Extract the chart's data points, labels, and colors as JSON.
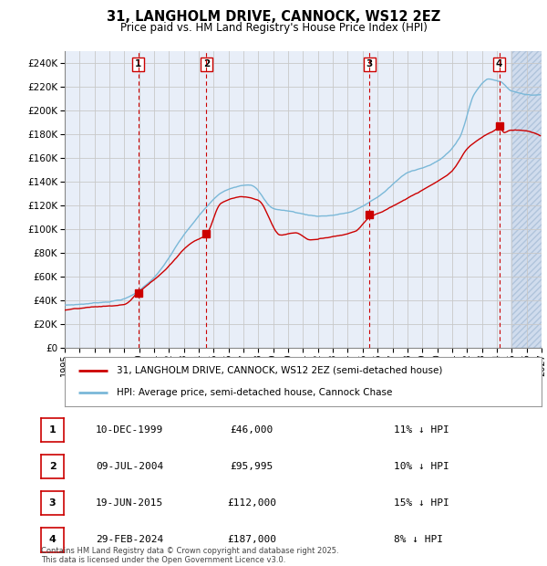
{
  "title1": "31, LANGHOLM DRIVE, CANNOCK, WS12 2EZ",
  "title2": "Price paid vs. HM Land Registry's House Price Index (HPI)",
  "legend_property": "31, LANGHOLM DRIVE, CANNOCK, WS12 2EZ (semi-detached house)",
  "legend_hpi": "HPI: Average price, semi-detached house, Cannock Chase",
  "footer": "Contains HM Land Registry data © Crown copyright and database right 2025.\nThis data is licensed under the Open Government Licence v3.0.",
  "sales": [
    {
      "num": 1,
      "date": "10-DEC-1999",
      "price": 46000,
      "pct": "11%",
      "year": 1999.94
    },
    {
      "num": 2,
      "date": "09-JUL-2004",
      "price": 95995,
      "pct": "10%",
      "year": 2004.52
    },
    {
      "num": 3,
      "date": "19-JUN-2015",
      "price": 112000,
      "pct": "15%",
      "year": 2015.46
    },
    {
      "num": 4,
      "date": "29-FEB-2024",
      "price": 187000,
      "pct": "8%",
      "year": 2024.16
    }
  ],
  "ylim": [
    0,
    250000
  ],
  "yticks": [
    0,
    20000,
    40000,
    60000,
    80000,
    100000,
    120000,
    140000,
    160000,
    180000,
    200000,
    220000,
    240000
  ],
  "xlim_start": 1995.0,
  "xlim_end": 2027.0,
  "hpi_color": "#7ab8d8",
  "price_color": "#cc0000",
  "grid_color": "#c8c8c8",
  "bg_color": "#e8eef8",
  "hatch_color": "#d0dced"
}
